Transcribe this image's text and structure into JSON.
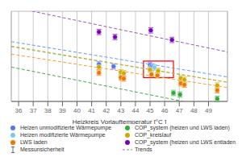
{
  "chart_data": {
    "type": "scatter",
    "xlabel": "Heizkreis Vorlauftemperatur [°C ]",
    "xlim": [
      35.5,
      50.3
    ],
    "ylim": [
      2.2,
      5.6
    ],
    "xticks": [
      36,
      37,
      38,
      39,
      40,
      41,
      42,
      43,
      44,
      45,
      46,
      47,
      48,
      49
    ],
    "grid": true,
    "tick_labels": "x",
    "legend": "bottom",
    "series": [
      {
        "name": "Heizen unmodifizierte Wärmepumpe",
        "color": "#5577ee",
        "x": [
          41.5,
          42.5,
          45.0,
          45.1,
          45.2
        ],
        "values": [
          3.6,
          3.52,
          3.58,
          3.52,
          3.5
        ]
      },
      {
        "name": "COP_system (heizen und LWS laden)",
        "color": "#33aa33",
        "x": [
          46.6,
          47.05,
          49.6
        ],
        "values": [
          2.52,
          2.46,
          2.3
        ]
      },
      {
        "name": "Heizen modifizierte Wärmepumpe",
        "color": "#77ccee",
        "x": [
          45.3
        ],
        "values": [
          3.48
        ]
      },
      {
        "name": "COP_kreislauf",
        "color": "#ccaa00",
        "x": [
          41.5,
          43.0,
          43.2,
          45.0,
          45.55,
          47.1,
          47.35,
          49.6
        ],
        "values": [
          3.5,
          3.3,
          3.26,
          3.4,
          3.35,
          3.07,
          3.02,
          2.8
        ]
      },
      {
        "name": "LWS laden",
        "color": "#ee7700",
        "x": [
          41.5,
          43.0,
          43.2,
          45.1,
          45.5,
          47.1,
          47.35,
          49.6
        ],
        "values": [
          3.28,
          3.1,
          3.06,
          3.22,
          3.18,
          2.88,
          2.83,
          2.62
        ]
      },
      {
        "name": "COP_system (heizen und LWS entladen)",
        "color": "#7700bb",
        "x": [
          41.5,
          42.6,
          45.05,
          46.5
        ],
        "values": [
          4.82,
          4.63,
          4.88,
          4.52
        ]
      }
    ],
    "error": {
      "value": 0.1,
      "label": "Messunsicherheit"
    },
    "trends": {
      "label": "Trends",
      "lines": [
        {
          "color": "#9955bb",
          "x": [
            35.5,
            50.3
          ],
          "values": [
            5.7675,
            4.0655
          ]
        },
        {
          "color": "#6699ee",
          "x": [
            35.5,
            50.3
          ],
          "values": [
            4.455,
            3.123
          ]
        },
        {
          "color": "#88ccee",
          "x": [
            35.5,
            50.3
          ],
          "values": [
            4.255,
            2.923
          ]
        },
        {
          "color": "#ff9933",
          "x": [
            35.5,
            50.3
          ],
          "values": [
            3.9825,
            2.7245
          ]
        },
        {
          "color": "#ccaa00",
          "x": [
            35.5,
            50.3
          ],
          "values": [
            4.284,
            2.9224
          ]
        },
        {
          "color": "#44aa44",
          "x": [
            35.5,
            50.3
          ],
          "values": [
            3.495,
            1.867
          ]
        }
      ]
    },
    "highlight": {
      "x": [
        44.55,
        46.6
      ],
      "values": [
        3.1,
        3.72
      ],
      "color": "red"
    }
  }
}
